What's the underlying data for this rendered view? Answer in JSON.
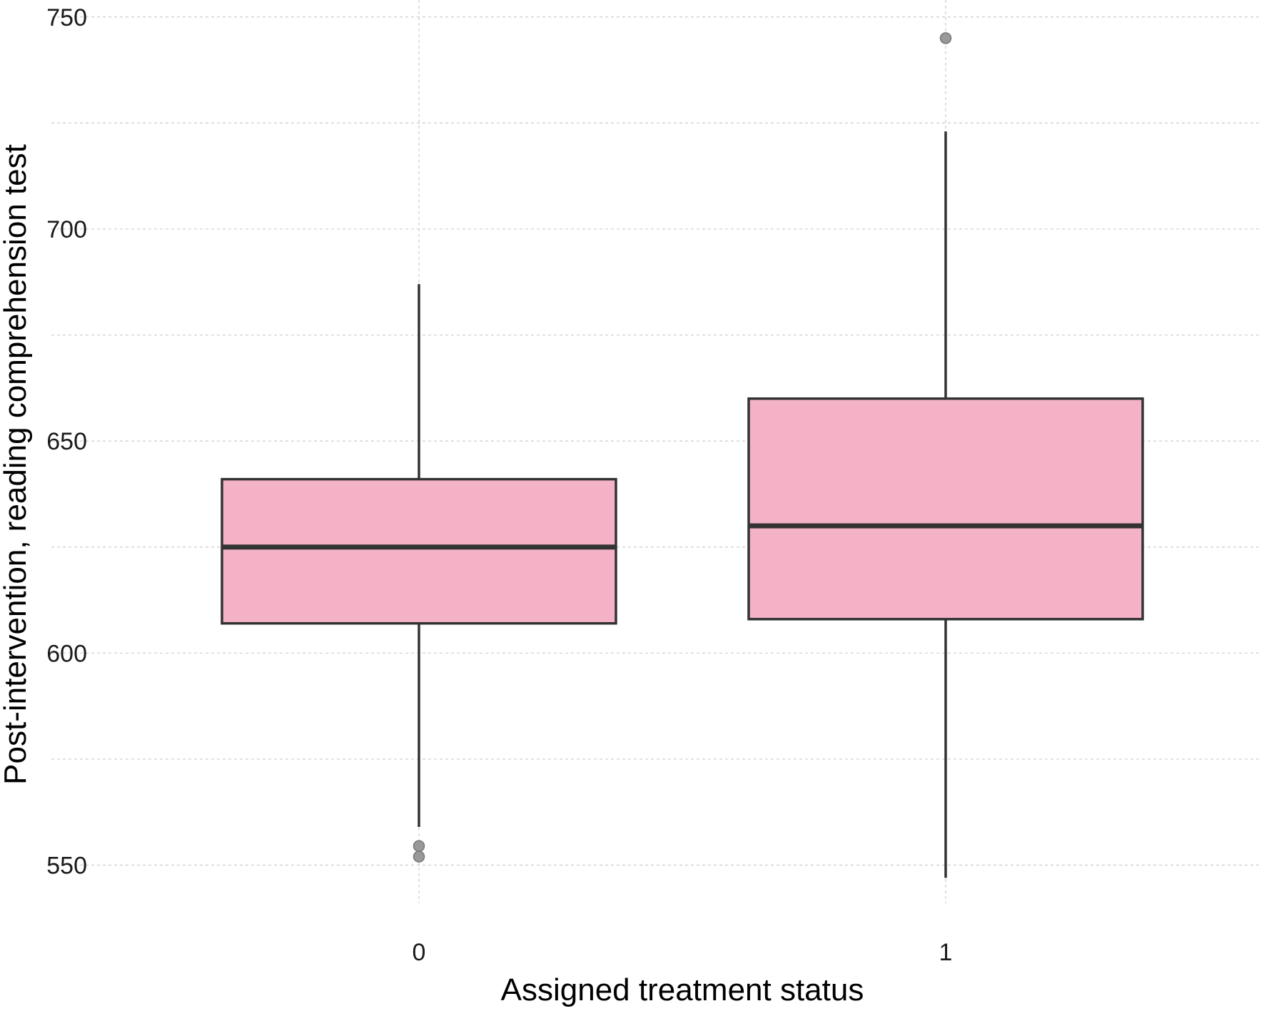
{
  "chart_data": {
    "type": "boxplot",
    "title": "",
    "xlabel": "Assigned treatment status",
    "ylabel": "Post-intervention, reading comprehension test",
    "categories": [
      "0",
      "1"
    ],
    "ylim": [
      541,
      754
    ],
    "yticks": [
      550,
      600,
      650,
      700,
      750
    ],
    "minor_gridlines": [
      575,
      625,
      675,
      725
    ],
    "grid": true,
    "legend": "none",
    "boxes": [
      {
        "category": "0",
        "whisker_low": 559,
        "q1": 607,
        "median": 625,
        "q3": 641,
        "whisker_high": 687,
        "outliers": [
          552,
          554.5
        ]
      },
      {
        "category": "1",
        "whisker_low": 547,
        "q1": 608,
        "median": 630,
        "q3": 660,
        "whisker_high": 723,
        "outliers": [
          745
        ]
      }
    ],
    "colors": {
      "box_fill": "#f4b2c6",
      "box_stroke": "#333333",
      "outlier": "#999999",
      "grid": "#cccccc"
    }
  }
}
